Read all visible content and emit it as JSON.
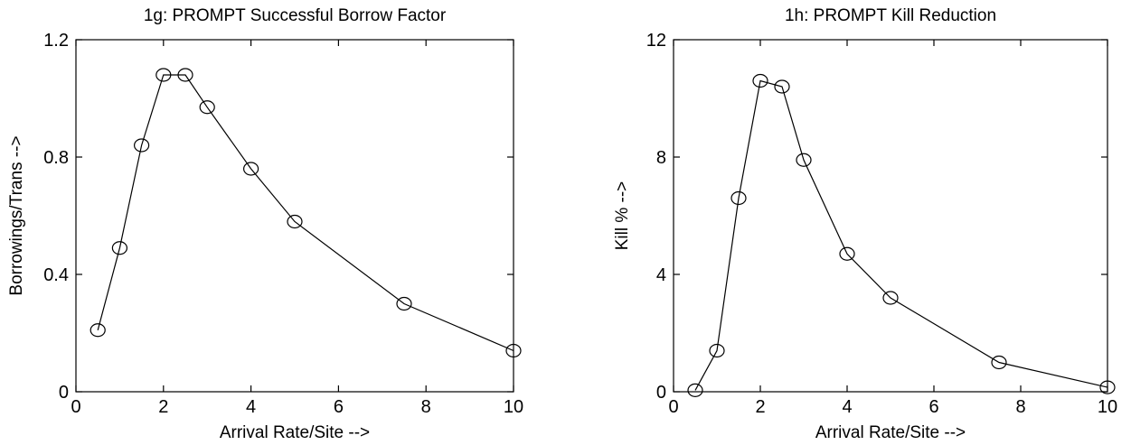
{
  "chart_data": [
    {
      "type": "line",
      "title": "1g: PROMPT Successful Borrow Factor",
      "xlabel": "Arrival Rate/Site -->",
      "ylabel": "Borrowings/Trans -->",
      "xlim": [
        0,
        10
      ],
      "ylim": [
        0,
        1.2
      ],
      "xticks": [
        0,
        2,
        4,
        6,
        8,
        10
      ],
      "yticks": [
        0,
        0.4,
        0.8,
        1.2
      ],
      "xtick_labels": [
        "0",
        "2",
        "4",
        "6",
        "8",
        "10"
      ],
      "ytick_labels": [
        "0",
        "0.4",
        "0.8",
        "1.2"
      ],
      "grid": false,
      "marker": "circle",
      "x": [
        0.5,
        1,
        1.5,
        2,
        2.5,
        3,
        4,
        5,
        7.5,
        10
      ],
      "y": [
        0.21,
        0.49,
        0.84,
        1.08,
        1.08,
        0.97,
        0.76,
        0.58,
        0.3,
        0.14
      ]
    },
    {
      "type": "line",
      "title": "1h: PROMPT Kill Reduction",
      "xlabel": "Arrival Rate/Site -->",
      "ylabel": "Kill % -->",
      "xlim": [
        0,
        10
      ],
      "ylim": [
        0,
        12
      ],
      "xticks": [
        0,
        2,
        4,
        6,
        8,
        10
      ],
      "yticks": [
        0,
        4,
        8,
        12
      ],
      "xtick_labels": [
        "0",
        "2",
        "4",
        "6",
        "8",
        "10"
      ],
      "ytick_labels": [
        "0",
        "4",
        "8",
        "12"
      ],
      "grid": false,
      "marker": "circle",
      "x": [
        0.5,
        1,
        1.5,
        2,
        2.5,
        3,
        4,
        5,
        7.5,
        10
      ],
      "y": [
        0.05,
        1.4,
        6.6,
        10.6,
        10.4,
        7.9,
        4.7,
        3.2,
        1.0,
        0.15
      ]
    }
  ]
}
